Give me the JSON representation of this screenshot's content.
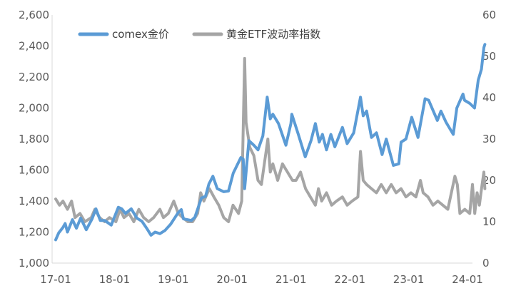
{
  "chart_data": {
    "type": "line",
    "title": "",
    "xlabel": "",
    "x_ticks": [
      "17-01",
      "18-01",
      "19-01",
      "20-01",
      "21-01",
      "22-01",
      "23-01",
      "24-01"
    ],
    "y_left": {
      "min": 1000,
      "max": 2600,
      "ticks": [
        "1,000",
        "1,200",
        "1,400",
        "1,600",
        "1,800",
        "2,000",
        "2,200",
        "2,400",
        "2,600"
      ]
    },
    "y_right": {
      "min": 0,
      "max": 60,
      "ticks": [
        "0",
        "10",
        "20",
        "30",
        "40",
        "50",
        "60"
      ]
    },
    "legend_position": "top",
    "grid": false,
    "series": [
      {
        "name": "comex金价",
        "axis": "left",
        "color": "#5B9BD5",
        "points": [
          [
            "2017-01-01",
            1150
          ],
          [
            "2017-01-20",
            1195
          ],
          [
            "2017-02-15",
            1230
          ],
          [
            "2017-03-01",
            1255
          ],
          [
            "2017-03-15",
            1200
          ],
          [
            "2017-04-15",
            1280
          ],
          [
            "2017-05-10",
            1225
          ],
          [
            "2017-06-05",
            1290
          ],
          [
            "2017-07-10",
            1215
          ],
          [
            "2017-08-15",
            1285
          ],
          [
            "2017-09-08",
            1350
          ],
          [
            "2017-10-05",
            1275
          ],
          [
            "2017-11-01",
            1275
          ],
          [
            "2017-12-12",
            1245
          ],
          [
            "2018-01-25",
            1360
          ],
          [
            "2018-02-15",
            1350
          ],
          [
            "2018-03-10",
            1320
          ],
          [
            "2018-04-15",
            1350
          ],
          [
            "2018-05-20",
            1290
          ],
          [
            "2018-06-20",
            1270
          ],
          [
            "2018-07-20",
            1225
          ],
          [
            "2018-08-16",
            1180
          ],
          [
            "2018-09-10",
            1200
          ],
          [
            "2018-10-10",
            1190
          ],
          [
            "2018-11-10",
            1210
          ],
          [
            "2018-12-15",
            1250
          ],
          [
            "2019-01-31",
            1325
          ],
          [
            "2019-02-20",
            1345
          ],
          [
            "2019-03-05",
            1285
          ],
          [
            "2019-04-23",
            1275
          ],
          [
            "2019-05-15",
            1295
          ],
          [
            "2019-06-25",
            1420
          ],
          [
            "2019-07-20",
            1430
          ],
          [
            "2019-08-10",
            1510
          ],
          [
            "2019-09-04",
            1560
          ],
          [
            "2019-10-01",
            1480
          ],
          [
            "2019-11-10",
            1460
          ],
          [
            "2019-12-10",
            1465
          ],
          [
            "2020-01-08",
            1580
          ],
          [
            "2020-02-24",
            1680
          ],
          [
            "2020-03-10",
            1670
          ],
          [
            "2020-03-19",
            1480
          ],
          [
            "2020-04-14",
            1790
          ],
          [
            "2020-05-15",
            1760
          ],
          [
            "2020-06-10",
            1730
          ],
          [
            "2020-07-10",
            1820
          ],
          [
            "2020-08-06",
            2070
          ],
          [
            "2020-08-25",
            1930
          ],
          [
            "2020-09-10",
            1960
          ],
          [
            "2020-10-15",
            1900
          ],
          [
            "2020-11-30",
            1760
          ],
          [
            "2020-12-31",
            1900
          ],
          [
            "2021-01-06",
            1960
          ],
          [
            "2021-02-15",
            1830
          ],
          [
            "2021-03-30",
            1685
          ],
          [
            "2021-05-05",
            1790
          ],
          [
            "2021-06-01",
            1900
          ],
          [
            "2021-06-25",
            1780
          ],
          [
            "2021-07-15",
            1830
          ],
          [
            "2021-08-09",
            1730
          ],
          [
            "2021-09-05",
            1830
          ],
          [
            "2021-09-30",
            1750
          ],
          [
            "2021-11-16",
            1875
          ],
          [
            "2021-12-15",
            1770
          ],
          [
            "2022-01-25",
            1840
          ],
          [
            "2022-03-08",
            2070
          ],
          [
            "2022-03-25",
            1950
          ],
          [
            "2022-04-15",
            1980
          ],
          [
            "2022-05-15",
            1810
          ],
          [
            "2022-06-15",
            1840
          ],
          [
            "2022-07-20",
            1700
          ],
          [
            "2022-08-15",
            1800
          ],
          [
            "2022-09-28",
            1630
          ],
          [
            "2022-11-01",
            1640
          ],
          [
            "2022-11-15",
            1780
          ],
          [
            "2022-12-15",
            1800
          ],
          [
            "2023-01-20",
            1940
          ],
          [
            "2023-02-28",
            1810
          ],
          [
            "2023-04-13",
            2060
          ],
          [
            "2023-05-05",
            2050
          ],
          [
            "2023-06-28",
            1920
          ],
          [
            "2023-07-20",
            1980
          ],
          [
            "2023-08-20",
            1910
          ],
          [
            "2023-10-05",
            1830
          ],
          [
            "2023-10-27",
            2000
          ],
          [
            "2023-12-04",
            2090
          ],
          [
            "2023-12-14",
            2050
          ],
          [
            "2024-01-15",
            2030
          ],
          [
            "2024-02-14",
            2000
          ],
          [
            "2024-03-08",
            2180
          ],
          [
            "2024-03-28",
            2250
          ],
          [
            "2024-04-12",
            2390
          ],
          [
            "2024-04-18",
            2410
          ]
        ]
      },
      {
        "name": "黄金ETF波动率指数",
        "axis": "right",
        "color": "#A5A5A5",
        "points": [
          [
            "2017-01-01",
            15.5
          ],
          [
            "2017-01-25",
            14
          ],
          [
            "2017-02-15",
            15
          ],
          [
            "2017-03-15",
            13
          ],
          [
            "2017-04-10",
            15
          ],
          [
            "2017-05-01",
            11
          ],
          [
            "2017-06-01",
            12
          ],
          [
            "2017-07-01",
            10
          ],
          [
            "2017-08-10",
            11
          ],
          [
            "2017-09-01",
            13
          ],
          [
            "2017-10-01",
            11
          ],
          [
            "2017-11-01",
            10
          ],
          [
            "2017-12-01",
            11
          ],
          [
            "2018-01-10",
            10
          ],
          [
            "2018-02-05",
            13
          ],
          [
            "2018-03-01",
            11
          ],
          [
            "2018-04-01",
            12
          ],
          [
            "2018-05-01",
            10
          ],
          [
            "2018-06-01",
            13
          ],
          [
            "2018-07-01",
            11
          ],
          [
            "2018-08-01",
            10
          ],
          [
            "2018-09-01",
            11
          ],
          [
            "2018-10-10",
            13
          ],
          [
            "2018-11-01",
            11
          ],
          [
            "2018-12-01",
            12
          ],
          [
            "2019-01-04",
            15
          ],
          [
            "2019-02-01",
            12
          ],
          [
            "2019-03-01",
            11
          ],
          [
            "2019-04-01",
            10
          ],
          [
            "2019-05-01",
            10
          ],
          [
            "2019-06-01",
            12
          ],
          [
            "2019-06-20",
            17
          ],
          [
            "2019-07-10",
            15
          ],
          [
            "2019-08-13",
            18
          ],
          [
            "2019-09-10",
            16
          ],
          [
            "2019-10-10",
            14
          ],
          [
            "2019-11-10",
            11
          ],
          [
            "2019-12-10",
            10
          ],
          [
            "2020-01-07",
            14
          ],
          [
            "2020-02-10",
            12
          ],
          [
            "2020-03-01",
            15
          ],
          [
            "2020-03-19",
            49.5
          ],
          [
            "2020-03-28",
            34
          ],
          [
            "2020-04-20",
            28
          ],
          [
            "2020-05-15",
            26
          ],
          [
            "2020-06-10",
            20
          ],
          [
            "2020-07-01",
            19
          ],
          [
            "2020-08-10",
            30
          ],
          [
            "2020-08-25",
            22
          ],
          [
            "2020-09-10",
            24
          ],
          [
            "2020-10-10",
            20
          ],
          [
            "2020-11-09",
            24
          ],
          [
            "2020-12-10",
            22
          ],
          [
            "2021-01-10",
            20
          ],
          [
            "2021-02-01",
            20
          ],
          [
            "2021-03-01",
            22
          ],
          [
            "2021-04-01",
            18
          ],
          [
            "2021-05-01",
            16
          ],
          [
            "2021-06-01",
            14
          ],
          [
            "2021-06-20",
            18
          ],
          [
            "2021-07-10",
            15
          ],
          [
            "2021-08-09",
            17
          ],
          [
            "2021-09-10",
            14
          ],
          [
            "2021-10-10",
            15
          ],
          [
            "2021-11-16",
            16
          ],
          [
            "2021-12-15",
            14
          ],
          [
            "2022-01-15",
            15
          ],
          [
            "2022-02-20",
            16
          ],
          [
            "2022-03-08",
            27
          ],
          [
            "2022-03-25",
            20
          ],
          [
            "2022-04-15",
            19
          ],
          [
            "2022-05-15",
            18
          ],
          [
            "2022-06-15",
            17
          ],
          [
            "2022-07-15",
            19
          ],
          [
            "2022-08-15",
            17
          ],
          [
            "2022-09-15",
            19
          ],
          [
            "2022-10-15",
            17
          ],
          [
            "2022-11-15",
            18
          ],
          [
            "2022-12-15",
            16
          ],
          [
            "2023-01-15",
            17
          ],
          [
            "2023-02-15",
            16
          ],
          [
            "2023-03-15",
            20
          ],
          [
            "2023-04-01",
            17
          ],
          [
            "2023-05-01",
            16
          ],
          [
            "2023-06-01",
            14
          ],
          [
            "2023-07-01",
            15
          ],
          [
            "2023-08-01",
            14
          ],
          [
            "2023-09-01",
            13
          ],
          [
            "2023-10-15",
            21
          ],
          [
            "2023-10-30",
            19
          ],
          [
            "2023-11-15",
            12
          ],
          [
            "2023-12-15",
            13
          ],
          [
            "2024-01-15",
            12
          ],
          [
            "2024-02-01",
            19
          ],
          [
            "2024-02-15",
            12
          ],
          [
            "2024-03-01",
            17
          ],
          [
            "2024-03-15",
            14
          ],
          [
            "2024-04-01",
            19
          ],
          [
            "2024-04-12",
            22
          ],
          [
            "2024-04-18",
            18
          ]
        ]
      }
    ]
  }
}
